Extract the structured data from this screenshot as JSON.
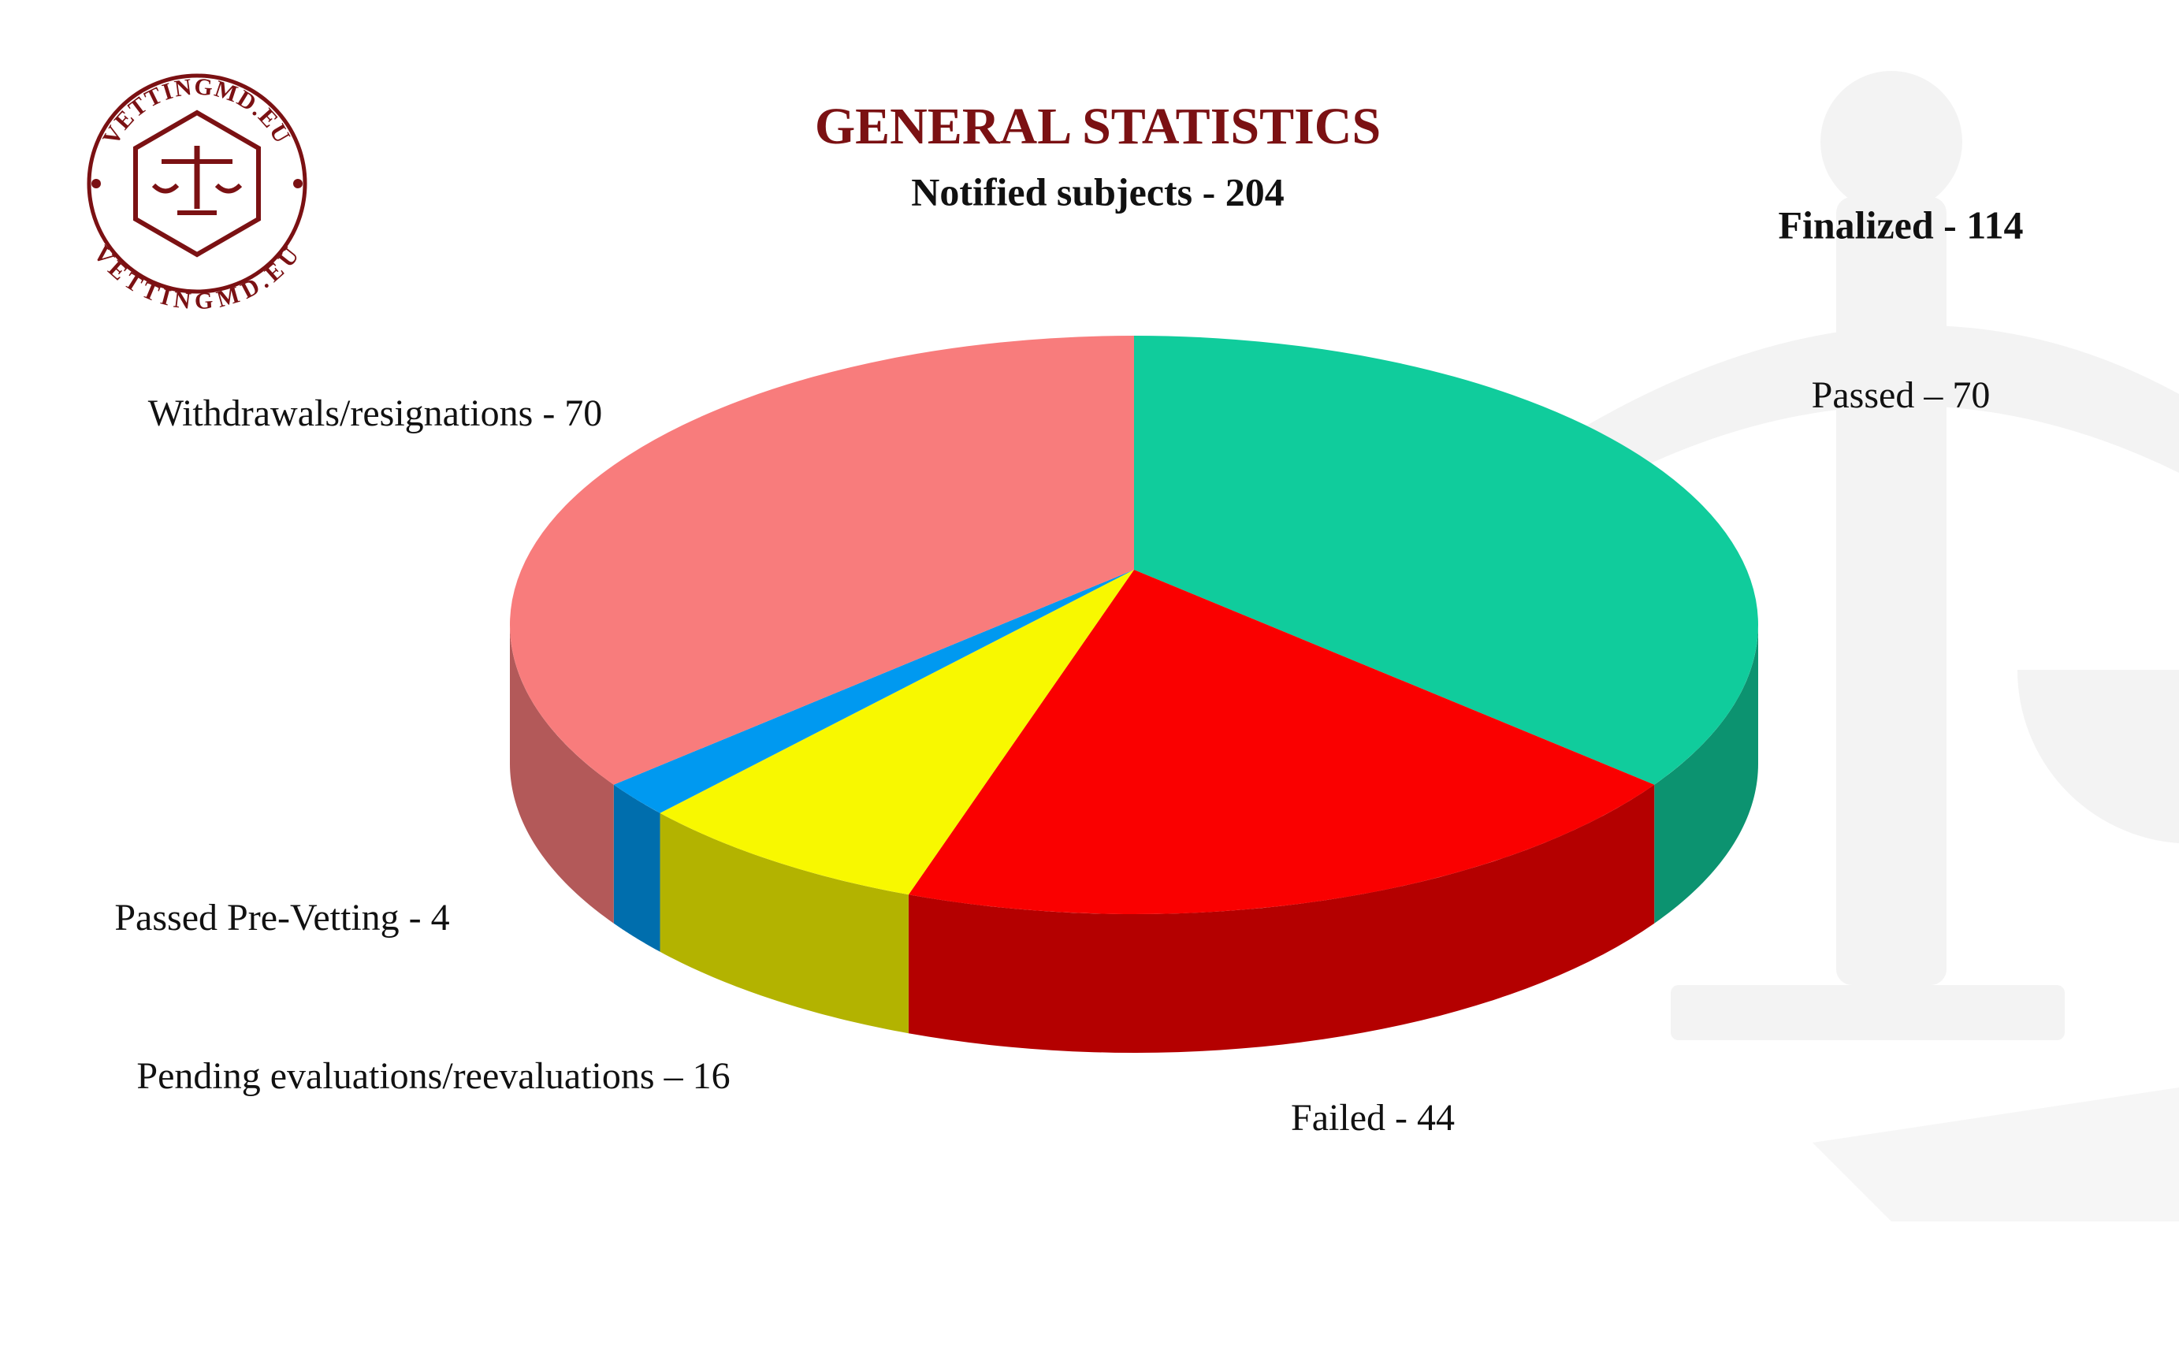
{
  "logo": {
    "top": "VETTINGMD.EU",
    "bottom": "VETTINGMD.EU"
  },
  "chart_data": {
    "type": "pie",
    "title": "GENERAL STATISTICS",
    "subtitle": "Notified subjects - 204",
    "annotation": "Finalized - 114",
    "categories": [
      "Passed – 70",
      "Failed - 44",
      "Pending evaluations/reevaluations – 16",
      "Passed Pre-Vetting - 4",
      "Withdrawals/resignations - 70"
    ],
    "values": [
      70,
      44,
      16,
      4,
      70
    ],
    "colors": [
      "#10cc9c",
      "#fa0000",
      "#f8f800",
      "#0099f0",
      "#f87c7c"
    ]
  }
}
